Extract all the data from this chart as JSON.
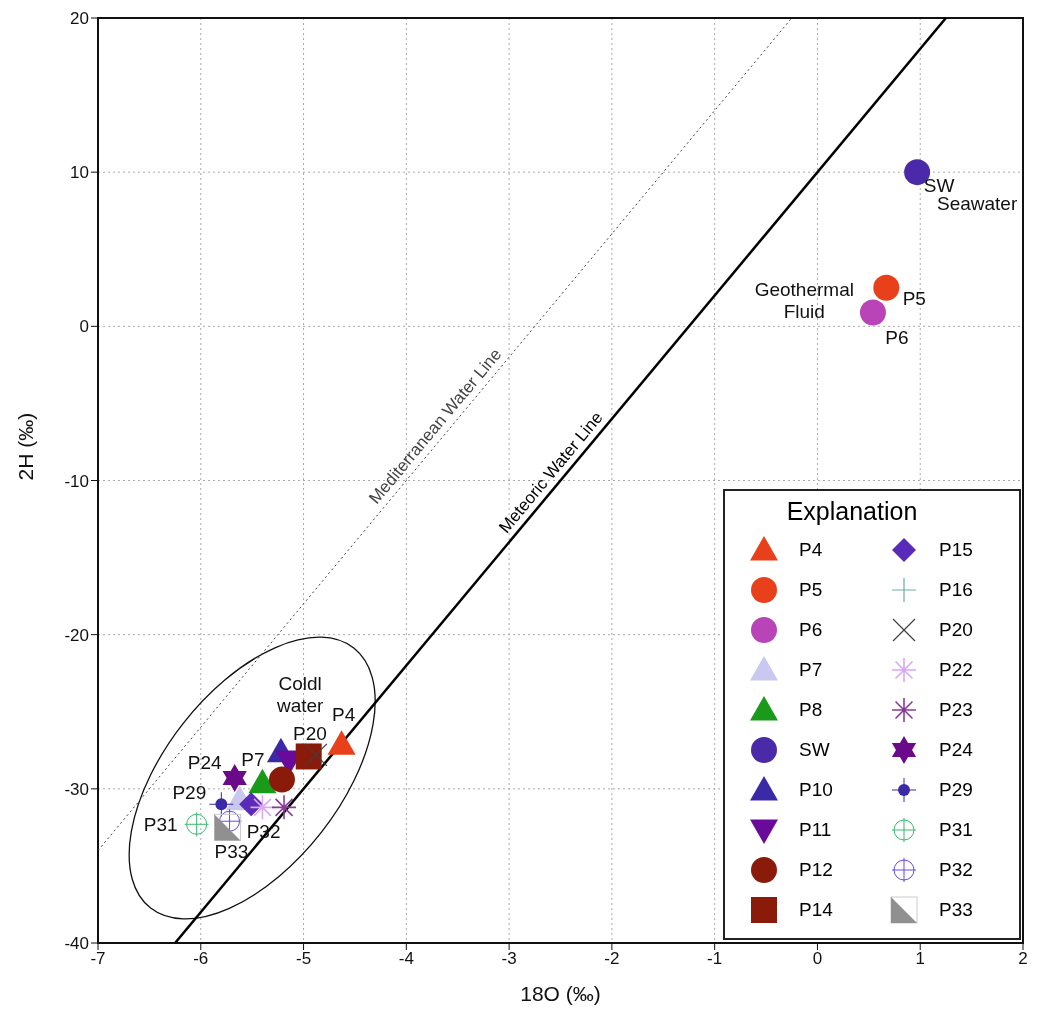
{
  "chart_data": {
    "type": "scatter",
    "xlabel": "18O (‰)",
    "ylabel": "2H (‰)",
    "legend_title": "Explanation",
    "xlim": [
      -7,
      2
    ],
    "ylim": [
      -40,
      20
    ],
    "xticks": [
      -7,
      -6,
      -5,
      -4,
      -3,
      -2,
      -1,
      0,
      1,
      2
    ],
    "yticks": [
      -40,
      -30,
      -20,
      -10,
      0,
      10,
      20
    ],
    "grid": true,
    "legend": "bottom right",
    "series": [
      {
        "name": "Meteoric Water Line",
        "type": "line",
        "color": "#000000",
        "line_style": "solid",
        "marker": "none",
        "x": [
          -6.25,
          1.25
        ],
        "values": [
          -40,
          20
        ]
      },
      {
        "name": "Mediterranean Water Line",
        "type": "line",
        "color": "#444444",
        "line_style": "dotted",
        "marker": "none",
        "x": [
          -7,
          -0.25
        ],
        "values": [
          -34,
          20
        ]
      },
      {
        "name": "P4",
        "color": "#e8401a",
        "marker": "triangle",
        "x": [
          -4.63
        ],
        "values": [
          -27.1
        ]
      },
      {
        "name": "P5",
        "color": "#e8401a",
        "marker": "circle",
        "x": [
          0.67
        ],
        "values": [
          2.5
        ]
      },
      {
        "name": "P6",
        "color": "#b844b8",
        "marker": "circle",
        "x": [
          0.54
        ],
        "values": [
          0.9
        ]
      },
      {
        "name": "P7",
        "color": "#c8c8f0",
        "marker": "triangle",
        "x": [
          -5.62
        ],
        "values": [
          -30.7
        ]
      },
      {
        "name": "P8",
        "color": "#1a9a1a",
        "marker": "triangle",
        "x": [
          -5.4
        ],
        "values": [
          -29.6
        ]
      },
      {
        "name": "SW",
        "color": "#4a2aa8",
        "marker": "circle",
        "x": [
          0.97
        ],
        "values": [
          10
        ]
      },
      {
        "name": "P10",
        "color": "#3a2aa8",
        "marker": "triangle",
        "x": [
          -5.22
        ],
        "values": [
          -27.6
        ]
      },
      {
        "name": "P11",
        "color": "#6a0a9a",
        "marker": "triangle-down",
        "x": [
          -5.14
        ],
        "values": [
          -28.2
        ]
      },
      {
        "name": "P12",
        "color": "#8a1a0a",
        "marker": "circle",
        "x": [
          -5.21
        ],
        "values": [
          -29.4
        ]
      },
      {
        "name": "P14",
        "color": "#8a1a0a",
        "marker": "square",
        "x": [
          -4.95
        ],
        "values": [
          -27.9
        ]
      },
      {
        "name": "P15",
        "color": "#5a2ab8",
        "marker": "diamond",
        "x": [
          -5.51
        ],
        "values": [
          -31
        ]
      },
      {
        "name": "P16",
        "color": "#6ab0a0",
        "marker": "plus",
        "x": [
          null
        ],
        "values": [
          null
        ]
      },
      {
        "name": "P20",
        "color": "#404040",
        "marker": "x",
        "x": [
          -4.88
        ],
        "values": [
          -27.8
        ]
      },
      {
        "name": "P22",
        "color": "#d8a8f0",
        "marker": "cross",
        "x": [
          -5.4
        ],
        "values": [
          -31.2
        ]
      },
      {
        "name": "P23",
        "color": "#8a3a9a",
        "marker": "cross",
        "x": [
          -5.19
        ],
        "values": [
          -31.2
        ]
      },
      {
        "name": "P24",
        "color": "#6a0a8a",
        "x": [
          -5.67
        ],
        "values": [
          -29.3
        ]
      },
      {
        "name": "P29",
        "color": "#3a2aa8",
        "x": [
          -5.8
        ],
        "values": [
          -31
        ]
      },
      {
        "name": "P31",
        "color": "#3ab870",
        "x": [
          -6.04
        ],
        "values": [
          -32.3
        ]
      },
      {
        "name": "P32",
        "color": "#6a4ae0",
        "x": [
          -5.72
        ],
        "values": [
          -32.1
        ]
      },
      {
        "name": "P33",
        "color": "#909090",
        "x": [
          -5.74
        ],
        "values": [
          -32.5
        ]
      }
    ],
    "annotations": [
      "Coldl water",
      {
        "text": "P4",
        "x": -4.63,
        "y": -27.1
      },
      {
        "text": "P20",
        "x": -4.88,
        "y": -27.8
      },
      {
        "text": "P7",
        "x": -5.62,
        "y": -30.7
      },
      {
        "text": "P24",
        "x": -5.67,
        "y": -29.3
      },
      {
        "text": "P29",
        "x": -5.8,
        "y": -31
      },
      {
        "text": "P31",
        "x": -6.04,
        "y": -32.3
      },
      {
        "text": "P32",
        "x": -5.72,
        "y": -32.1
      },
      {
        "text": "P33",
        "x": -5.74,
        "y": -32.5
      },
      {
        "text": "Geothermal Fluid",
        "x": 0.67,
        "y": 2.5
      },
      {
        "text": "P5",
        "x": 0.67,
        "y": 2.5
      },
      {
        "text": "P6",
        "x": 0.54,
        "y": 0.9
      },
      {
        "text": "SW",
        "x": 0.97,
        "y": 10
      },
      {
        "text": "Seawater",
        "x": 0.97,
        "y": 10
      }
    ]
  }
}
